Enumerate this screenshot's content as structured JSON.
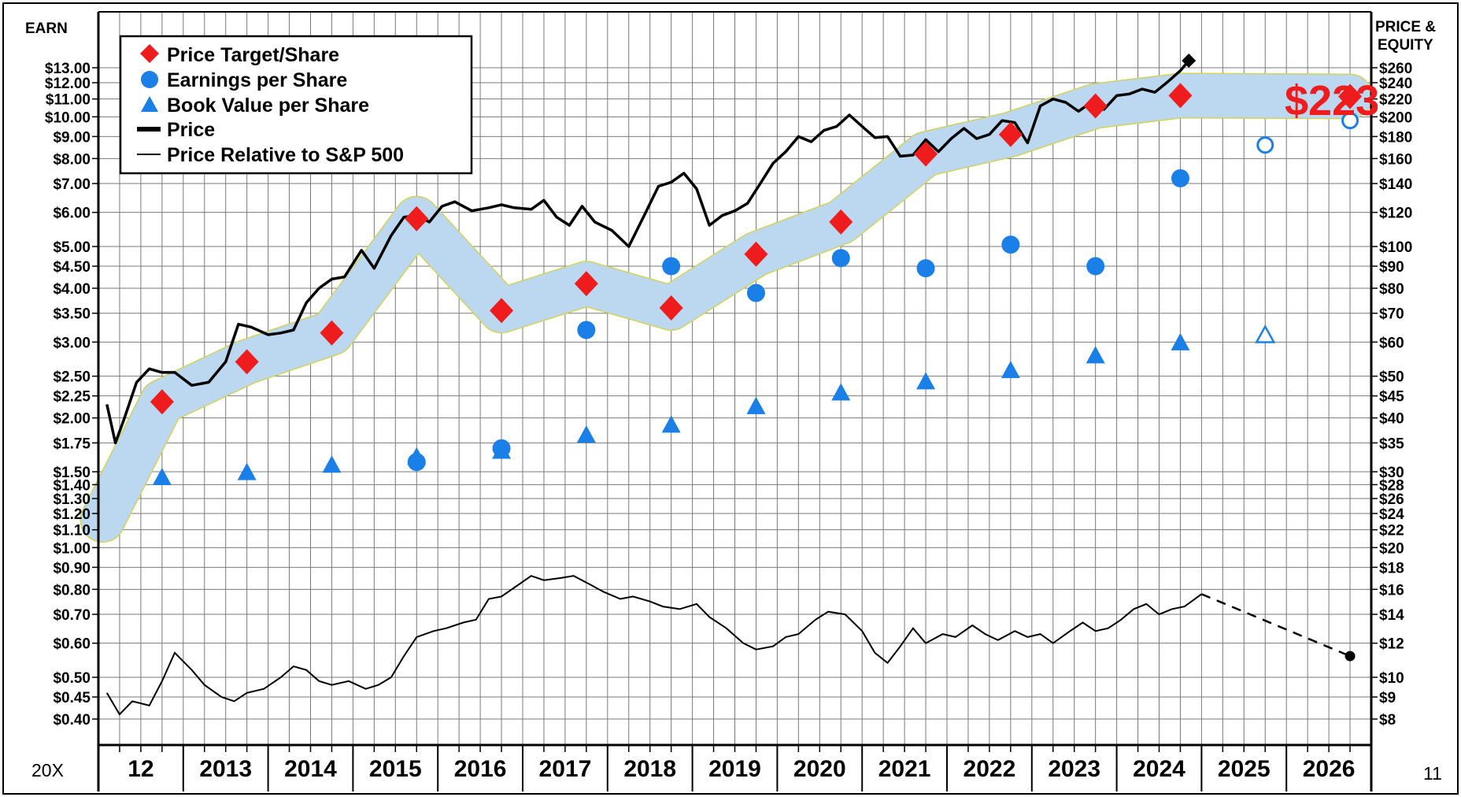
{
  "chart_data": {
    "type": "line",
    "axes": {
      "left_title": "EARN",
      "right_title_line1": "PRICE &",
      "right_title_line2": "EQUITY",
      "left_ticks": [
        "$13.00",
        "$12.00",
        "$11.00",
        "$10.00",
        "$9.00",
        "$8.00",
        "$7.00",
        "$6.00",
        "$5.00",
        "$4.50",
        "$4.00",
        "$3.50",
        "$3.00",
        "$2.50",
        "$2.25",
        "$2.00",
        "$1.75",
        "$1.50",
        "$1.40",
        "$1.30",
        "$1.20",
        "$1.10",
        "$1.00",
        "$0.90",
        "$0.80",
        "$0.70",
        "$0.60",
        "$0.50",
        "$0.45",
        "$0.40"
      ],
      "left_tick_values": [
        13,
        12,
        11,
        10,
        9,
        8,
        7,
        6,
        5,
        4.5,
        4,
        3.5,
        3,
        2.5,
        2.25,
        2,
        1.75,
        1.5,
        1.4,
        1.3,
        1.2,
        1.1,
        1,
        0.9,
        0.8,
        0.7,
        0.6,
        0.5,
        0.45,
        0.4
      ],
      "right_ticks": [
        "$260",
        "$240",
        "$220",
        "$200",
        "$180",
        "$160",
        "$140",
        "$120",
        "$100",
        "$90",
        "$80",
        "$70",
        "$60",
        "$50",
        "$45",
        "$40",
        "$35",
        "$30",
        "$28",
        "$26",
        "$24",
        "$22",
        "$20",
        "$18",
        "$16",
        "$14",
        "$12",
        "$10",
        "$9",
        "$8"
      ],
      "x_ticks": [
        "12",
        "2013",
        "2014",
        "2015",
        "2016",
        "2017",
        "2018",
        "2019",
        "2020",
        "2021",
        "2022",
        "2023",
        "2024",
        "2025",
        "2026"
      ],
      "left_range": [
        0.38,
        14.5
      ],
      "x_range": [
        2011.0,
        2026.0
      ],
      "price_scale_factor": 20
    },
    "footer": {
      "left": "20X",
      "right": "11"
    },
    "legend": {
      "entries": [
        "Price Target/Share",
        "Earnings per Share",
        "Book Value per Share",
        "Price",
        "Price Relative to S&P 500"
      ],
      "placement": "top-left"
    },
    "price_target_label": "$223",
    "colors": {
      "target": "#ee1c1c",
      "earnings": "#1a7fe6",
      "book": "#1a7fe6",
      "band_fill": "#bcd8f0",
      "band_stroke": "#d2d25c",
      "grid": "#7a7a7a"
    },
    "series": [
      {
        "name": "Price Target/Share",
        "marker": "diamond",
        "x": [
          2011.75,
          2012.75,
          2013.75,
          2014.75,
          2015.75,
          2016.75,
          2017.75,
          2018.75,
          2019.75,
          2020.75,
          2021.75,
          2022.75,
          2023.75,
          2025.75
        ],
        "values": [
          2.18,
          2.7,
          3.15,
          5.8,
          3.55,
          4.1,
          3.6,
          4.8,
          5.7,
          8.2,
          9.1,
          10.6,
          11.2,
          11.15
        ]
      },
      {
        "name": "Earnings per Share",
        "marker": "circle",
        "x": [
          2014.75,
          2015.75,
          2016.75,
          2017.75,
          2018.75,
          2019.75,
          2020.75,
          2021.75,
          2022.75,
          2023.75
        ],
        "values": [
          1.58,
          1.7,
          3.2,
          4.5,
          3.9,
          4.7,
          4.45,
          5.05,
          4.5,
          7.2
        ],
        "projected_x": [
          2024.75,
          2025.75
        ],
        "projected_values": [
          8.6,
          9.8
        ]
      },
      {
        "name": "Book Value per Share",
        "marker": "triangle",
        "x": [
          2011.75,
          2012.75,
          2013.75,
          2014.75,
          2015.75,
          2016.75,
          2017.75,
          2018.75,
          2019.75,
          2020.75,
          2021.75,
          2022.75,
          2023.75
        ],
        "values": [
          1.45,
          1.49,
          1.55,
          1.62,
          1.67,
          1.82,
          1.92,
          2.12,
          2.28,
          2.42,
          2.57,
          2.78,
          2.98
        ],
        "projected_x": [
          2024.75
        ],
        "projected_values": [
          3.1
        ]
      },
      {
        "name": "Price",
        "units": "earnings-scale (price / 20)",
        "x": [
          2011.1,
          2011.2,
          2011.3,
          2011.45,
          2011.6,
          2011.75,
          2011.9,
          2012.1,
          2012.3,
          2012.5,
          2012.65,
          2012.8,
          2013.0,
          2013.15,
          2013.3,
          2013.45,
          2013.6,
          2013.75,
          2013.9,
          2014.1,
          2014.25,
          2014.45,
          2014.6,
          2014.75,
          2014.9,
          2015.05,
          2015.2,
          2015.4,
          2015.6,
          2015.75,
          2015.9,
          2016.1,
          2016.25,
          2016.4,
          2016.55,
          2016.7,
          2016.85,
          2017.05,
          2017.25,
          2017.45,
          2017.6,
          2017.75,
          2017.9,
          2018.05,
          2018.2,
          2018.35,
          2018.5,
          2018.65,
          2018.8,
          2018.95,
          2019.1,
          2019.25,
          2019.4,
          2019.55,
          2019.7,
          2019.85,
          2020.0,
          2020.15,
          2020.3,
          2020.45,
          2020.6,
          2020.75,
          2020.9,
          2021.05,
          2021.2,
          2021.35,
          2021.5,
          2021.65,
          2021.8,
          2021.95,
          2022.1,
          2022.25,
          2022.4,
          2022.55,
          2022.7,
          2022.85,
          2023.0,
          2023.15,
          2023.3,
          2023.45,
          2023.6,
          2023.75,
          2023.85
        ],
        "values": [
          2.15,
          1.75,
          1.98,
          2.42,
          2.6,
          2.55,
          2.55,
          2.38,
          2.42,
          2.7,
          3.3,
          3.25,
          3.12,
          3.15,
          3.2,
          3.7,
          4.0,
          4.2,
          4.25,
          4.9,
          4.45,
          5.3,
          5.85,
          5.9,
          5.7,
          6.2,
          6.35,
          6.05,
          6.15,
          6.25,
          6.15,
          6.1,
          6.4,
          5.85,
          5.6,
          6.2,
          5.7,
          5.45,
          5.0,
          6.0,
          6.9,
          7.05,
          7.4,
          6.8,
          5.6,
          5.9,
          6.05,
          6.3,
          7.0,
          7.8,
          8.3,
          9.0,
          8.75,
          9.3,
          9.5,
          10.1,
          9.5,
          8.95,
          9.0,
          8.1,
          8.15,
          8.85,
          8.3,
          8.9,
          9.4,
          8.9,
          9.1,
          9.8,
          9.7,
          8.7,
          10.6,
          11.0,
          10.8,
          10.3,
          10.8,
          10.4,
          11.2,
          11.3,
          11.6,
          11.4,
          12.05,
          12.8,
          13.5
        ]
      },
      {
        "name": "Price Relative to S&P 500",
        "x": [
          2011.1,
          2011.25,
          2011.4,
          2011.6,
          2011.75,
          2011.9,
          2012.1,
          2012.25,
          2012.45,
          2012.6,
          2012.75,
          2012.95,
          2013.15,
          2013.3,
          2013.45,
          2013.6,
          2013.75,
          2013.95,
          2014.15,
          2014.3,
          2014.45,
          2014.6,
          2014.75,
          2014.95,
          2015.1,
          2015.3,
          2015.45,
          2015.6,
          2015.75,
          2015.95,
          2016.1,
          2016.25,
          2016.45,
          2016.6,
          2016.8,
          2016.95,
          2017.15,
          2017.3,
          2017.5,
          2017.65,
          2017.85,
          2018.05,
          2018.2,
          2018.4,
          2018.6,
          2018.75,
          2018.95,
          2019.1,
          2019.25,
          2019.45,
          2019.6,
          2019.8,
          2020.0,
          2020.15,
          2020.3,
          2020.45,
          2020.6,
          2020.75,
          2020.95,
          2021.1,
          2021.3,
          2021.45,
          2021.6,
          2021.8,
          2021.95,
          2022.1,
          2022.25,
          2022.45,
          2022.6,
          2022.75,
          2022.9,
          2023.05,
          2023.2,
          2023.35,
          2023.5,
          2023.65,
          2023.8,
          2024.0
        ],
        "values": [
          0.46,
          0.41,
          0.44,
          0.43,
          0.49,
          0.57,
          0.52,
          0.48,
          0.45,
          0.44,
          0.46,
          0.47,
          0.5,
          0.53,
          0.52,
          0.49,
          0.48,
          0.49,
          0.47,
          0.48,
          0.5,
          0.56,
          0.62,
          0.64,
          0.65,
          0.67,
          0.68,
          0.76,
          0.77,
          0.82,
          0.86,
          0.84,
          0.85,
          0.86,
          0.82,
          0.79,
          0.76,
          0.77,
          0.75,
          0.73,
          0.72,
          0.74,
          0.69,
          0.65,
          0.6,
          0.58,
          0.59,
          0.62,
          0.63,
          0.68,
          0.71,
          0.7,
          0.64,
          0.57,
          0.54,
          0.59,
          0.65,
          0.6,
          0.63,
          0.62,
          0.66,
          0.63,
          0.61,
          0.64,
          0.62,
          0.63,
          0.6,
          0.64,
          0.67,
          0.64,
          0.65,
          0.68,
          0.72,
          0.74,
          0.7,
          0.72,
          0.73,
          0.78
        ],
        "projection_x": [
          2024.0,
          2025.75
        ],
        "projection_values": [
          0.78,
          0.56
        ]
      }
    ]
  }
}
